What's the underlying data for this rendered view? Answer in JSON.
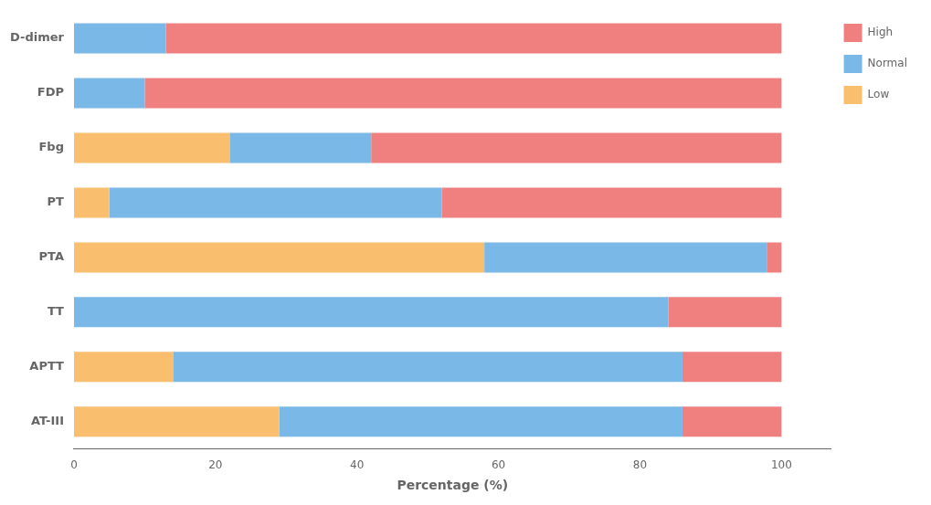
{
  "chart_data": {
    "type": "bar",
    "orientation": "horizontal",
    "stacked": true,
    "categories": [
      "D-dimer",
      "FDP",
      "Fbg",
      "PT",
      "PTA",
      "TT",
      "APTT",
      "AT-III"
    ],
    "series": [
      {
        "name": "Low",
        "color": "#F9BE6E",
        "values": [
          0,
          0,
          22,
          5,
          58,
          0,
          14,
          29
        ]
      },
      {
        "name": "Normal",
        "color": "#7AB8E8",
        "values": [
          13,
          10,
          20,
          47,
          40,
          84,
          72,
          57
        ]
      },
      {
        "name": "High",
        "color": "#F08080",
        "values": [
          87,
          90,
          58,
          48,
          2,
          16,
          14,
          14
        ]
      }
    ],
    "xlabel": "Percentage (%)",
    "xlim": [
      0,
      107
    ],
    "xticks": [
      0,
      20,
      40,
      60,
      80,
      100
    ],
    "grid": false,
    "legend": "right"
  }
}
